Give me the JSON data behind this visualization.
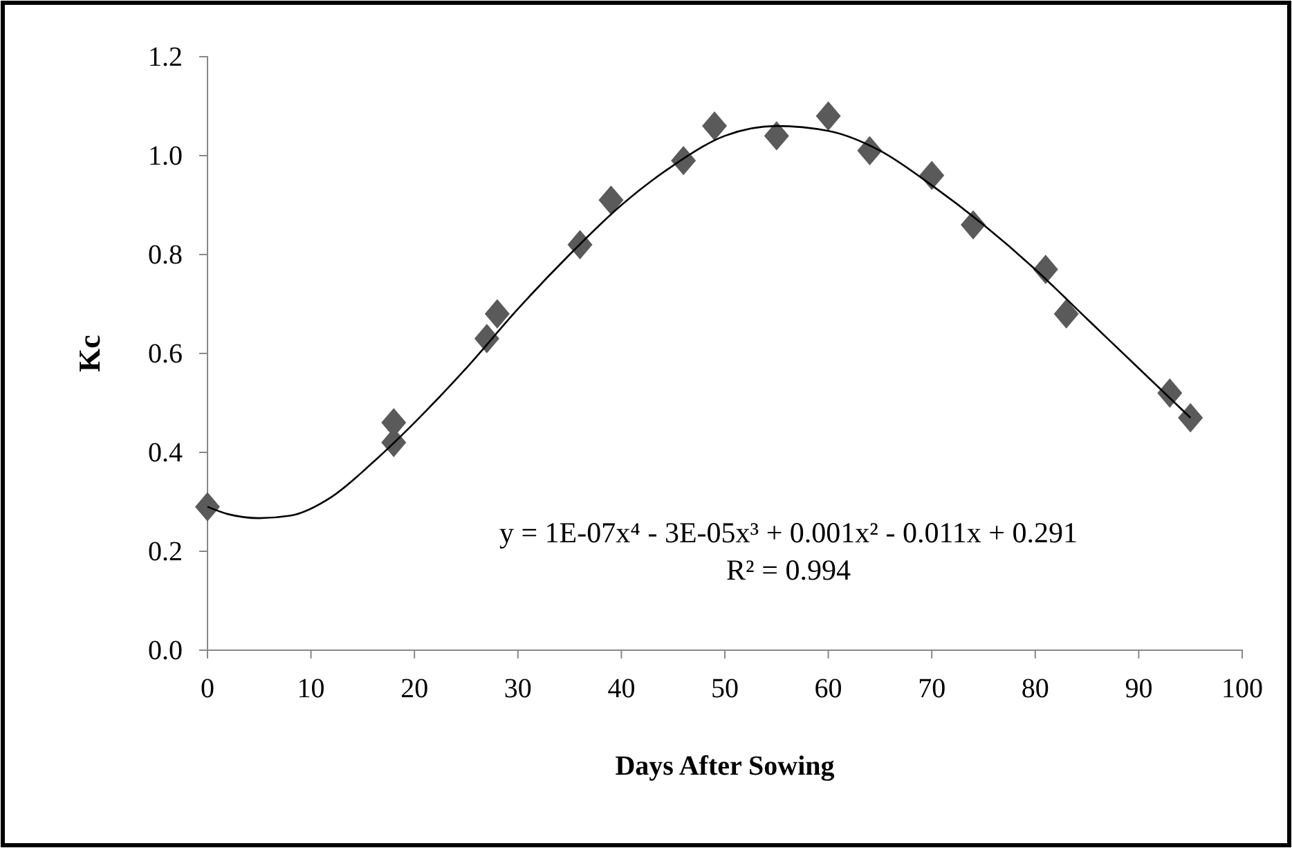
{
  "chart_data": {
    "type": "scatter",
    "xlabel": "Days After Sowing",
    "ylabel": "Kc",
    "annotations": [
      "y = 1E-07x⁴ - 3E-05x³ + 0.001x² - 0.011x + 0.291",
      "R² = 0.994"
    ],
    "xlim": [
      0,
      100
    ],
    "xticks": [
      0,
      10,
      20,
      30,
      40,
      50,
      60,
      70,
      80,
      90,
      100
    ],
    "ylim": [
      0,
      1.2
    ],
    "yticks": [
      {
        "value": 0,
        "label": "0.0"
      },
      {
        "value": 0.2,
        "label": "0.2"
      },
      {
        "value": 0.4,
        "label": "0.4"
      },
      {
        "value": 0.6,
        "label": "0.6"
      },
      {
        "value": 0.8,
        "label": "0.8"
      },
      {
        "value": 1.0,
        "label": "1.0"
      },
      {
        "value": 1.2,
        "label": "1.2"
      }
    ],
    "grid": false,
    "series": [
      {
        "type": "scatter",
        "marker": "diamond",
        "color": "#5a5a5a",
        "x": [
          0,
          18,
          18,
          27,
          28,
          36,
          39,
          46,
          49,
          55,
          60,
          64,
          70,
          74,
          81,
          83,
          93,
          95
        ],
        "values": [
          0.29,
          0.46,
          0.42,
          0.63,
          0.68,
          0.82,
          0.91,
          0.99,
          1.06,
          1.04,
          1.08,
          1.01,
          0.96,
          0.86,
          0.77,
          0.68,
          0.52,
          0.47
        ]
      },
      {
        "type": "line",
        "marker": "none",
        "line_style": "solid",
        "color": "#000000",
        "x": [
          0,
          2,
          5,
          8,
          12,
          16,
          20,
          25,
          30,
          35,
          40,
          45,
          50,
          55,
          60,
          65,
          70,
          75,
          80,
          85,
          90,
          95
        ],
        "values": [
          0.29,
          0.275,
          0.267,
          0.272,
          0.31,
          0.38,
          0.46,
          0.57,
          0.69,
          0.8,
          0.9,
          0.98,
          1.04,
          1.06,
          1.05,
          1.01,
          0.94,
          0.86,
          0.77,
          0.67,
          0.57,
          0.47
        ]
      }
    ]
  }
}
